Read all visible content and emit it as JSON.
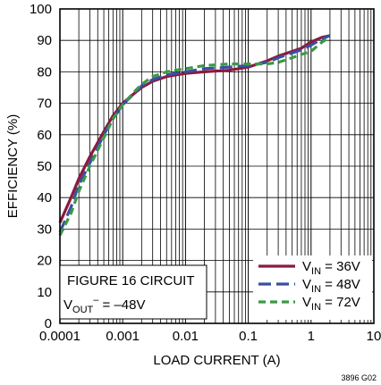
{
  "chart_data": {
    "type": "line",
    "title": "",
    "xlabel": "LOAD CURRENT (A)",
    "ylabel": "EFFICIENCY (%)",
    "x_scale": "log",
    "xlim": [
      0.0001,
      10
    ],
    "ylim": [
      0,
      100
    ],
    "grid": true,
    "x_ticks": [
      "0.0001",
      "0.001",
      "0.01",
      "0.1",
      "1",
      "10"
    ],
    "y_ticks": [
      "0",
      "10",
      "20",
      "30",
      "40",
      "50",
      "60",
      "70",
      "80",
      "90",
      "100"
    ],
    "legend_position": "bottom-right",
    "series": [
      {
        "name": "V_IN = 36V",
        "legend_main": "V",
        "legend_sub": "IN",
        "legend_rest": " = 36V",
        "color": "#8b1a3c",
        "dash": "solid",
        "x": [
          0.0001,
          0.00015,
          0.0002,
          0.0003,
          0.0005,
          0.0007,
          0.001,
          0.0015,
          0.002,
          0.003,
          0.005,
          0.007,
          0.01,
          0.02,
          0.05,
          0.1,
          0.2,
          0.3,
          0.5,
          0.7,
          1,
          1.5,
          2
        ],
        "y": [
          32,
          40,
          46,
          53,
          61,
          66,
          70,
          73,
          75,
          77,
          78.5,
          79,
          79.5,
          80,
          80.5,
          81.5,
          83.5,
          85,
          86.5,
          87.5,
          89.5,
          91,
          91.5
        ]
      },
      {
        "name": "V_IN = 48V",
        "legend_main": "V",
        "legend_sub": "IN",
        "legend_rest": " = 48V",
        "color": "#3a4fa0",
        "dash": "long",
        "x": [
          0.0001,
          0.00015,
          0.0002,
          0.0003,
          0.0005,
          0.0007,
          0.001,
          0.0015,
          0.002,
          0.003,
          0.005,
          0.007,
          0.01,
          0.02,
          0.05,
          0.1,
          0.2,
          0.3,
          0.5,
          0.7,
          1,
          1.5,
          2
        ],
        "y": [
          29,
          37,
          44,
          51,
          60,
          65,
          69.5,
          73,
          75.5,
          77.5,
          79,
          79.5,
          80,
          81,
          81.5,
          82,
          83,
          84.5,
          86,
          87,
          88.5,
          90.5,
          91.5
        ]
      },
      {
        "name": "V_IN = 72V",
        "legend_main": "V",
        "legend_sub": "IN",
        "legend_rest": " = 72V",
        "color": "#3a9a46",
        "dash": "short",
        "x": [
          0.0001,
          0.00015,
          0.0002,
          0.0003,
          0.0005,
          0.0007,
          0.001,
          0.0015,
          0.002,
          0.003,
          0.005,
          0.007,
          0.01,
          0.02,
          0.05,
          0.1,
          0.2,
          0.3,
          0.5,
          0.7,
          1,
          1.5,
          2
        ],
        "y": [
          28,
          35,
          42,
          50,
          59,
          65,
          69.5,
          73.5,
          76,
          78.5,
          80,
          80.5,
          81,
          82,
          82.5,
          82.5,
          82.5,
          83,
          84.5,
          85.5,
          86.5,
          89.5,
          91
        ]
      }
    ],
    "annotation_line1": "FIGURE 16 CIRCUIT",
    "annotation_line2_main": "V",
    "annotation_line2_sub": "OUT",
    "annotation_line2_sup": "–",
    "annotation_line2_rest": " = –48V",
    "figure_code": "3896 G02"
  }
}
